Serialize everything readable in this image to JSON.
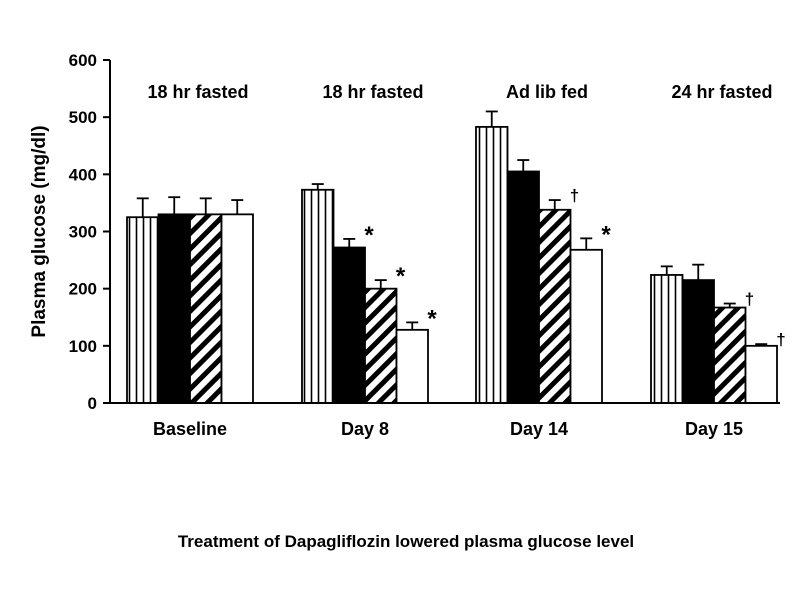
{
  "caption": "Treatment of Dapagliflozin lowered plasma glucose level",
  "chart_data": {
    "type": "bar",
    "title": "",
    "xlabel": "",
    "ylabel": "Plasma glucose (mg/dl)",
    "ylim": [
      0,
      600
    ],
    "yticks": [
      "0",
      "100",
      "200",
      "300",
      "400",
      "500",
      "600"
    ],
    "categories": [
      "Baseline",
      "Day 8",
      "Day 14",
      "Day 15"
    ],
    "group_labels": [
      "18 hr fasted",
      "18 hr fasted",
      "Ad lib fed",
      "24 hr fasted"
    ],
    "series": [
      {
        "fill": "vertical-stripes",
        "values": [
          325,
          373,
          483,
          224
        ],
        "errors": [
          33,
          10,
          27,
          15
        ],
        "marks": [
          "",
          "",
          "",
          ""
        ]
      },
      {
        "fill": "solid-black",
        "values": [
          330,
          272,
          405,
          215
        ],
        "errors": [
          30,
          15,
          20,
          27
        ],
        "marks": [
          "",
          "*",
          "",
          ""
        ]
      },
      {
        "fill": "diagonal-hatch",
        "values": [
          330,
          200,
          338,
          167
        ],
        "errors": [
          28,
          15,
          17,
          7
        ],
        "marks": [
          "",
          "*",
          "†",
          "†"
        ]
      },
      {
        "fill": "white",
        "values": [
          330,
          128,
          268,
          100
        ],
        "errors": [
          25,
          13,
          20,
          3
        ],
        "marks": [
          "",
          "*",
          "*",
          "†"
        ]
      }
    ],
    "grid": false,
    "legend": "none"
  }
}
